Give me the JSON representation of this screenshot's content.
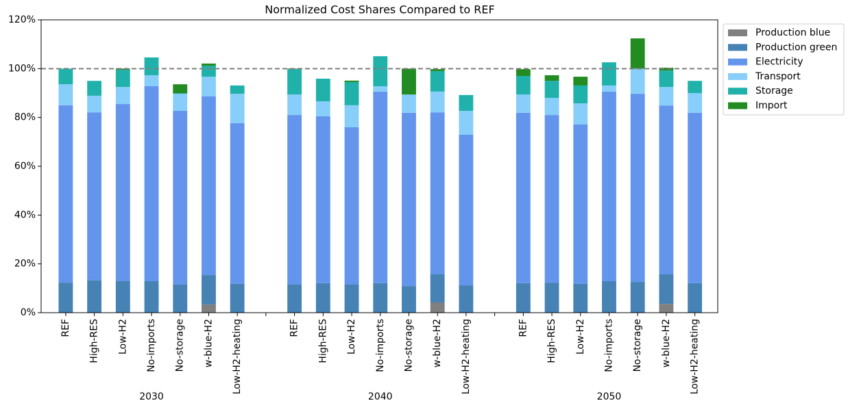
{
  "chart_data": {
    "type": "stacked_bar",
    "title": "Normalized Cost Shares Compared to REF",
    "categories": [
      "REF",
      "High-RES",
      "Low-H2",
      "No-imports",
      "No-storage",
      "w-blue-H2",
      "Low-H2-heating",
      null,
      "REF",
      "High-RES",
      "Low-H2",
      "No-imports",
      "No-storage",
      "w-blue-H2",
      "Low-H2-heating",
      null,
      "REF",
      "High-RES",
      "Low-H2",
      "No-imports",
      "No-storage",
      "w-blue-H2",
      "Low-H2-heating"
    ],
    "groups": [
      "2030",
      "2040",
      "2050"
    ],
    "series": [
      {
        "name": "Production blue",
        "color": "#808080",
        "values": [
          0,
          0,
          0,
          0,
          0,
          3.4,
          0,
          null,
          0,
          0,
          0,
          0,
          0,
          4.2,
          0,
          null,
          0,
          0,
          0,
          0,
          0,
          3.6,
          0
        ]
      },
      {
        "name": "Production green",
        "color": "#4682b4",
        "values": [
          12.3,
          13.2,
          12.9,
          12.9,
          11.5,
          12,
          11.8,
          null,
          11.5,
          12.1,
          11.5,
          12.1,
          10.9,
          11.5,
          11.2,
          null,
          12.1,
          12.3,
          11.8,
          12.9,
          12.6,
          12.1,
          12.1
        ]
      },
      {
        "name": "Electricity",
        "color": "#6495ed",
        "values": [
          72.7,
          68.9,
          72.6,
          79.9,
          71.2,
          73.2,
          65.9,
          null,
          69.5,
          68.4,
          64.5,
          78.5,
          71,
          66.4,
          61.7,
          null,
          69.8,
          68.7,
          65.3,
          77.7,
          77.1,
          69.2,
          69.8
        ]
      },
      {
        "name": "Transport",
        "color": "#87cefa",
        "values": [
          8.6,
          6.8,
          7,
          4.5,
          7,
          8.1,
          12,
          null,
          8.4,
          6.1,
          9,
          2.2,
          7.5,
          8.5,
          9.8,
          null,
          7.5,
          7,
          8.7,
          2.5,
          10.3,
          7.6,
          8.1
        ]
      },
      {
        "name": "Storage",
        "color": "#20b2aa",
        "values": [
          6.4,
          6.1,
          7,
          7.3,
          0.2,
          4.5,
          3.4,
          null,
          10.4,
          9.3,
          9.5,
          12.3,
          0,
          8.4,
          6.5,
          null,
          7.6,
          7,
          7.3,
          9.5,
          0,
          6.7,
          5
        ]
      },
      {
        "name": "Import",
        "color": "#228b22",
        "values": [
          0,
          0,
          0.5,
          0,
          3.7,
          0.9,
          0,
          null,
          0.2,
          0,
          0.6,
          0,
          10.6,
          0.8,
          0,
          null,
          2.8,
          2.3,
          3.6,
          0,
          12.4,
          1.2,
          0
        ]
      }
    ],
    "ylim": [
      0,
      120
    ],
    "yticks": [
      {
        "value": 0,
        "label": "0%"
      },
      {
        "value": 20,
        "label": "20%"
      },
      {
        "value": 40,
        "label": "40%"
      },
      {
        "value": 60,
        "label": "60%"
      },
      {
        "value": 80,
        "label": "80%"
      },
      {
        "value": 100,
        "label": "100%"
      },
      {
        "value": 120,
        "label": "120%"
      }
    ],
    "ref_line": 100,
    "legend": "upper right outside"
  }
}
